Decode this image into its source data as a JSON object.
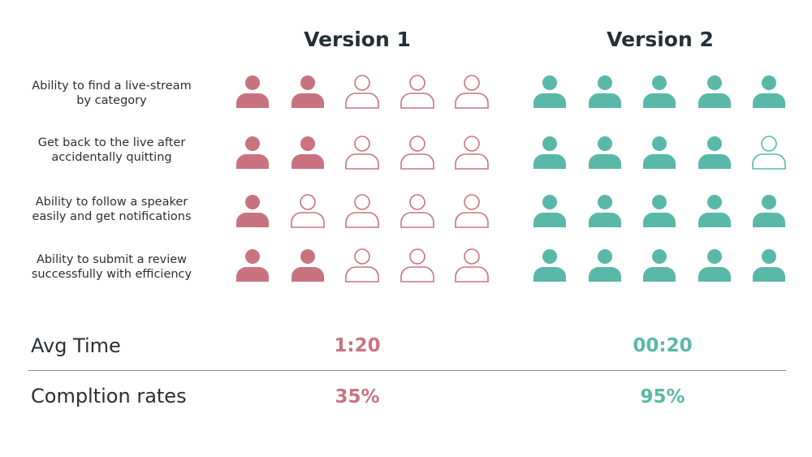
{
  "colors": {
    "version1": "#c97380",
    "version2": "#5ab8a9",
    "text": "#2b2e35",
    "title": "#243036",
    "divider": "#8d8f93"
  },
  "chart_data": {
    "type": "table",
    "columns": [
      "Version 1",
      "Version 2"
    ],
    "rows": [
      {
        "label": "Ability to find a live-stream by category",
        "version1_success": 2,
        "version2_success": 5,
        "total": 5
      },
      {
        "label": "Get back to the live after accidentally quitting",
        "version1_success": 2,
        "version2_success": 4,
        "total": 5
      },
      {
        "label": "Ability to follow a speaker easily and get notifications",
        "version1_success": 1,
        "version2_success": 5,
        "total": 5
      },
      {
        "label": "Ability to submit a review successfully with efficiency",
        "version1_success": 2,
        "version2_success": 5,
        "total": 5
      }
    ],
    "metrics": [
      {
        "label": "Avg Time",
        "version1": "1:20",
        "version2": "00:20"
      },
      {
        "label": "Compltion rates",
        "version1": "35%",
        "version2": "95%"
      }
    ]
  },
  "header": {
    "version1": "Version 1",
    "version2": "Version 2"
  },
  "tasks": [
    {
      "line1": "Ability to find a live-stream",
      "line2": "by category"
    },
    {
      "line1": "Get back to the live after",
      "line2": "accidentally quitting"
    },
    {
      "line1": "Ability to follow a speaker",
      "line2": "easily and get notifications"
    },
    {
      "line1": "Ability to submit a review",
      "line2": "successfully with efficiency"
    }
  ],
  "metrics": {
    "avg_time": {
      "label": "Avg Time",
      "v1": "1:20",
      "v2": "00:20"
    },
    "completion": {
      "label": "Compltion rates",
      "v1": "35%",
      "v2": "95%"
    }
  }
}
